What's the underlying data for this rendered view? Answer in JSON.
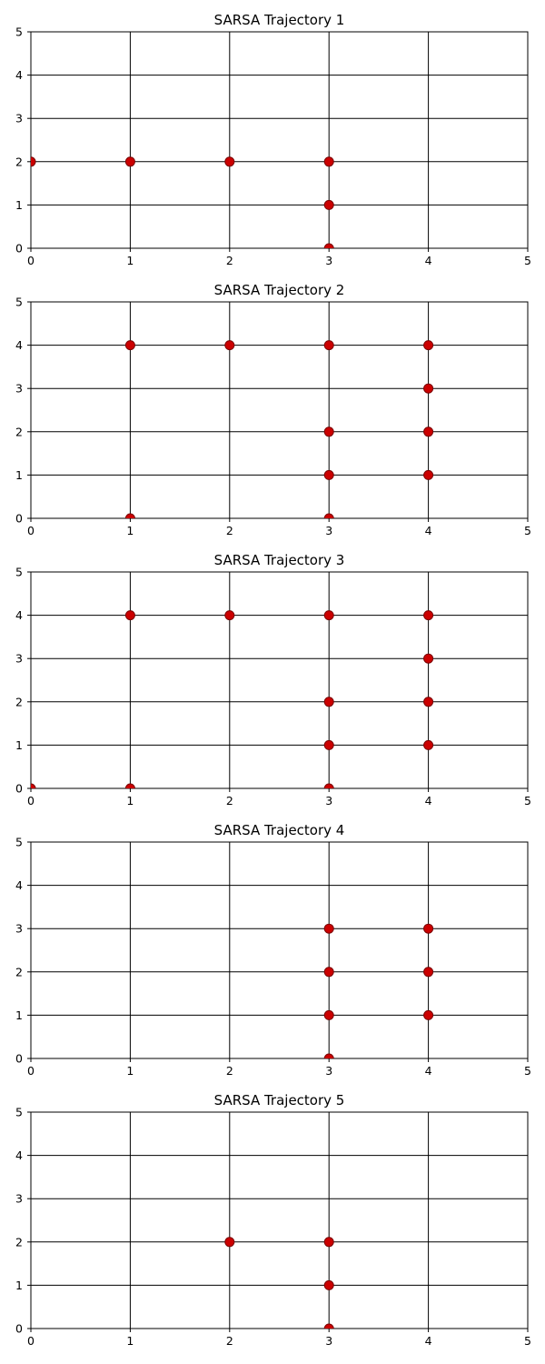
{
  "chart_data": [
    {
      "type": "scatter",
      "title": "SARSA Trajectory 1",
      "xlim": [
        0,
        5
      ],
      "ylim": [
        0,
        5
      ],
      "xticks": [
        "0",
        "1",
        "2",
        "3",
        "4",
        "5"
      ],
      "yticks": [
        "0",
        "1",
        "2",
        "3",
        "4",
        "5"
      ],
      "grid": true,
      "points": [
        [
          0,
          2
        ],
        [
          1,
          2
        ],
        [
          2,
          2
        ],
        [
          3,
          2
        ],
        [
          3,
          1
        ],
        [
          3,
          0
        ]
      ],
      "marker_color": "#cc0000",
      "marker_edge": "#7a0000"
    },
    {
      "type": "scatter",
      "title": "SARSA Trajectory 2",
      "xlim": [
        0,
        5
      ],
      "ylim": [
        0,
        5
      ],
      "xticks": [
        "0",
        "1",
        "2",
        "3",
        "4",
        "5"
      ],
      "yticks": [
        "0",
        "1",
        "2",
        "3",
        "4",
        "5"
      ],
      "grid": true,
      "points": [
        [
          1,
          0
        ],
        [
          1,
          4
        ],
        [
          2,
          4
        ],
        [
          3,
          4
        ],
        [
          4,
          4
        ],
        [
          4,
          3
        ],
        [
          4,
          2
        ],
        [
          4,
          1
        ],
        [
          3,
          2
        ],
        [
          3,
          1
        ],
        [
          3,
          0
        ]
      ],
      "marker_color": "#cc0000",
      "marker_edge": "#7a0000"
    },
    {
      "type": "scatter",
      "title": "SARSA Trajectory 3",
      "xlim": [
        0,
        5
      ],
      "ylim": [
        0,
        5
      ],
      "xticks": [
        "0",
        "1",
        "2",
        "3",
        "4",
        "5"
      ],
      "yticks": [
        "0",
        "1",
        "2",
        "3",
        "4",
        "5"
      ],
      "grid": true,
      "points": [
        [
          0,
          0
        ],
        [
          1,
          0
        ],
        [
          1,
          4
        ],
        [
          2,
          4
        ],
        [
          3,
          4
        ],
        [
          4,
          4
        ],
        [
          4,
          3
        ],
        [
          4,
          2
        ],
        [
          4,
          1
        ],
        [
          3,
          2
        ],
        [
          3,
          1
        ],
        [
          3,
          0
        ]
      ],
      "marker_color": "#cc0000",
      "marker_edge": "#7a0000"
    },
    {
      "type": "scatter",
      "title": "SARSA Trajectory 4",
      "xlim": [
        0,
        5
      ],
      "ylim": [
        0,
        5
      ],
      "xticks": [
        "0",
        "1",
        "2",
        "3",
        "4",
        "5"
      ],
      "yticks": [
        "0",
        "1",
        "2",
        "3",
        "4",
        "5"
      ],
      "grid": true,
      "points": [
        [
          3,
          3
        ],
        [
          4,
          3
        ],
        [
          4,
          2
        ],
        [
          4,
          1
        ],
        [
          3,
          2
        ],
        [
          3,
          1
        ],
        [
          3,
          0
        ]
      ],
      "marker_color": "#cc0000",
      "marker_edge": "#7a0000"
    },
    {
      "type": "scatter",
      "title": "SARSA Trajectory 5",
      "xlim": [
        0,
        5
      ],
      "ylim": [
        0,
        5
      ],
      "xticks": [
        "0",
        "1",
        "2",
        "3",
        "4",
        "5"
      ],
      "yticks": [
        "0",
        "1",
        "2",
        "3",
        "4",
        "5"
      ],
      "grid": true,
      "points": [
        [
          2,
          2
        ],
        [
          3,
          2
        ],
        [
          3,
          1
        ],
        [
          3,
          0
        ]
      ],
      "marker_color": "#cc0000",
      "marker_edge": "#7a0000"
    }
  ]
}
